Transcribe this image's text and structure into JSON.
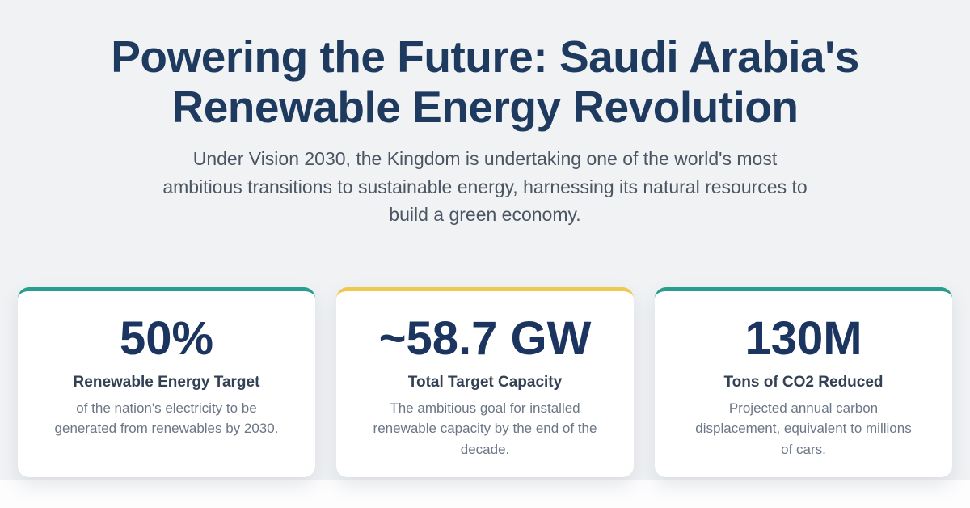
{
  "page": {
    "background_color": "#f0f2f4",
    "bottom_band_color": "#fdfdfe"
  },
  "hero": {
    "title": "Powering the Future: Saudi Arabia's Renewable Energy Revolution",
    "title_color": "#1e3a5f",
    "subtitle": "Under Vision 2030, the Kingdom is undertaking one of the world's most ambitious transitions to sustainable energy, harnessing its natural resources to build a green economy.",
    "subtitle_color": "#4b5563"
  },
  "stats": {
    "cards": [
      {
        "value": "50%",
        "label": "Renewable Energy Target",
        "description": "of the nation's electricity to be generated from renewables by 2030.",
        "accent_color": "#2a9d8f"
      },
      {
        "value": "~58.7 GW",
        "label": "Total Target Capacity",
        "description": "The ambitious goal for installed renewable capacity by the end of the decade.",
        "accent_color": "#eec950"
      },
      {
        "value": "130M",
        "label": "Tons of CO2 Reduced",
        "description": "Projected annual carbon displacement, equivalent to millions of cars.",
        "accent_color": "#2a9d8f"
      }
    ]
  }
}
